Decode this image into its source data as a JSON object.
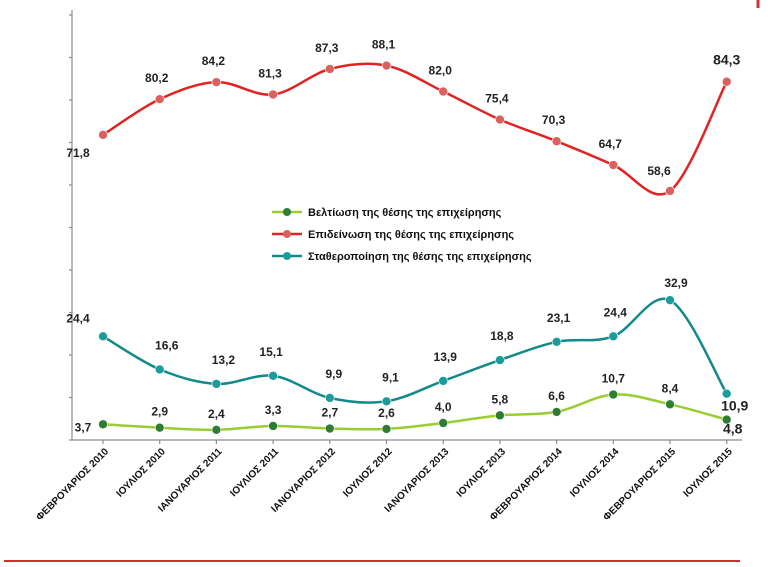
{
  "chart_data": {
    "type": "line",
    "categories": [
      "ΦΕΒΡΟΥΑΡΙΟΣ 2010",
      "ΙΟΥΛΙΟΣ 2010",
      "ΙΑΝΟΥΑΡΙΟΣ 2011",
      "ΙΟΥΛΙΟΣ 2011",
      "ΙΑΝΟΥΑΡΙΟΣ 2012",
      "ΙΟΥΛΙΟΣ 2012",
      "ΙΑΝΟΥΑΡΙΟΣ 2013",
      "ΙΟΥΛΙΟΣ 2013",
      "ΦΕΒΡΟΥΑΡΙΟΣ 2014",
      "ΙΟΥΛΙΟΣ 2014",
      "ΦΕΒΡΟΥΑΡΙΟΣ 2015",
      "ΙΟΥΛΙΟΣ 2015"
    ],
    "series": [
      {
        "name": "Βελτίωση της θέσης της επιχείρησης",
        "color": "#9ACD32",
        "marker_color": "#2E7D32",
        "values": [
          3.7,
          2.9,
          2.4,
          3.3,
          2.7,
          2.6,
          4.0,
          5.8,
          6.6,
          10.7,
          8.4,
          4.8
        ],
        "labels": [
          "3,7",
          "2,9",
          "2,4",
          "3,3",
          "2,7",
          "2,6",
          "4,0",
          "5,8",
          "6,6",
          "10,7",
          "8,4",
          "4,8"
        ]
      },
      {
        "name": "Επιδείνωση της θέσης της επιχείρησης",
        "color": "#E32323",
        "marker_color": "#D9625E",
        "values": [
          71.8,
          80.2,
          84.2,
          81.3,
          87.3,
          88.1,
          82.0,
          75.4,
          70.3,
          64.7,
          58.6,
          84.3
        ],
        "labels": [
          "71,8",
          "80,2",
          "84,2",
          "81,3",
          "87,3",
          "88,1",
          "82,0",
          "75,4",
          "70,3",
          "64,7",
          "58,6",
          "84,3"
        ]
      },
      {
        "name": "Σταθεροποίηση της θέσης της επιχείρησης",
        "color": "#138A8A",
        "marker_color": "#1A9C9C",
        "values": [
          24.4,
          16.6,
          13.2,
          15.1,
          9.9,
          9.1,
          13.9,
          18.8,
          23.1,
          24.4,
          32.9,
          10.9
        ],
        "labels": [
          "24,4",
          "16,6",
          "13,2",
          "15,1",
          "9,9",
          "9,1",
          "13,9",
          "18,8",
          "23,1",
          "24,4",
          "32,9",
          "10,9"
        ]
      }
    ],
    "ylim": [
      0,
      100
    ],
    "legend_position": "center",
    "grid": false
  }
}
